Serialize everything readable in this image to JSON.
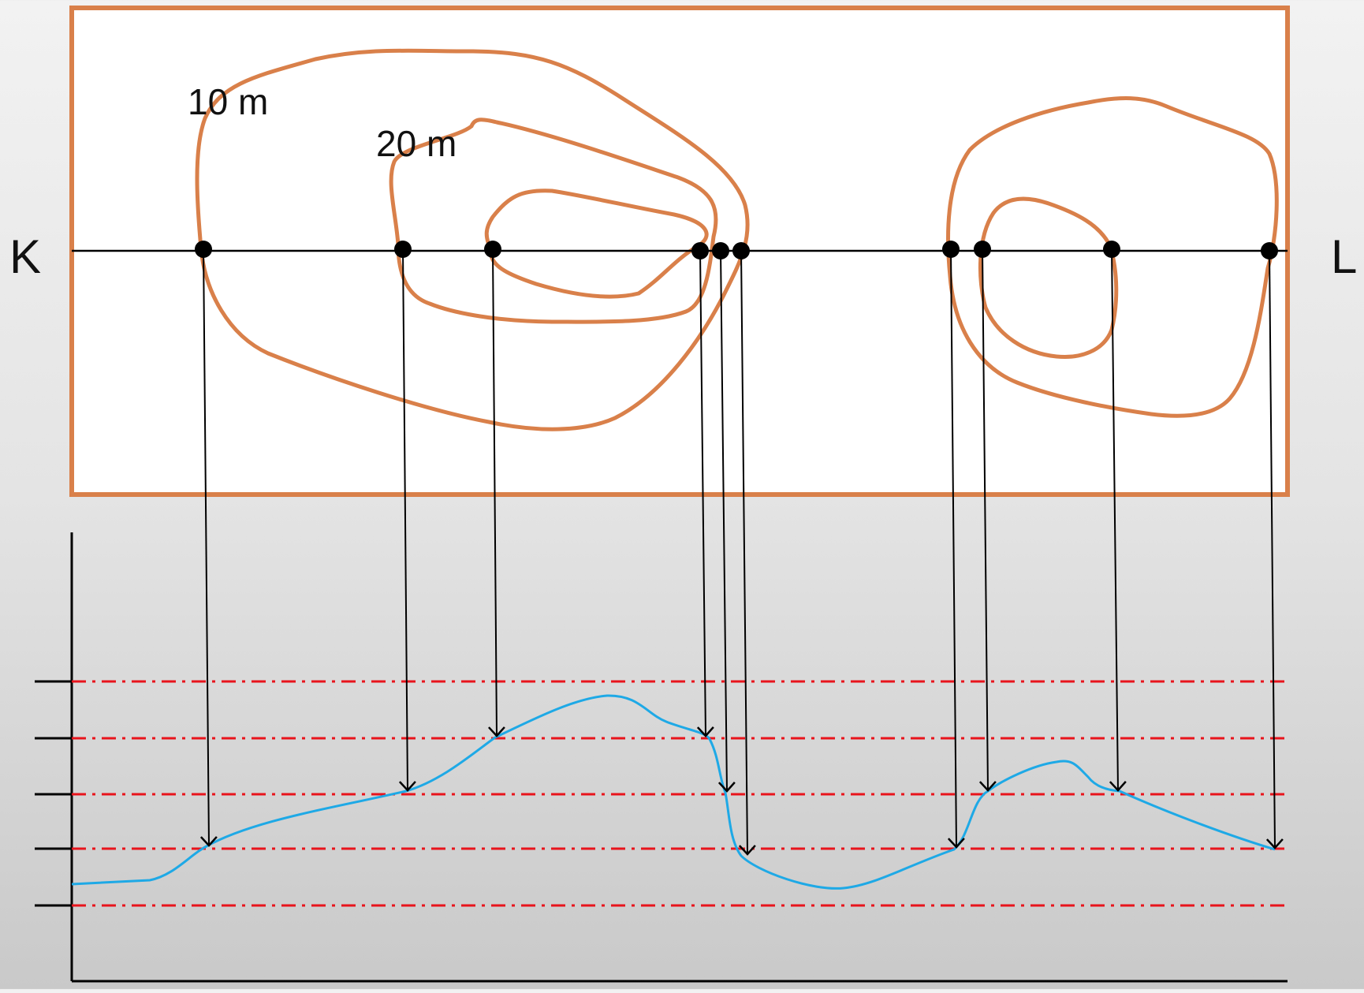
{
  "map": {
    "contour_labels": {
      "outer": "10 m",
      "middle": "20 m"
    },
    "line_start_label": "K",
    "line_end_label": "L"
  },
  "colors": {
    "map_border": "#d9804a",
    "contour": "#d9804a",
    "line": "#000000",
    "profile": "#1ea9e6",
    "guides": "#e8141c"
  }
}
